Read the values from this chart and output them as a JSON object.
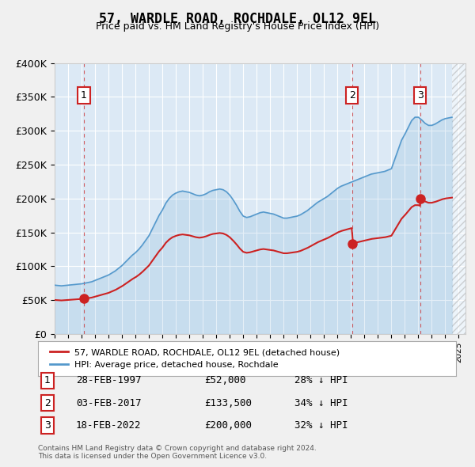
{
  "title": "57, WARDLE ROAD, ROCHDALE, OL12 9EL",
  "subtitle": "Price paid vs. HM Land Registry's House Price Index (HPI)",
  "xlabel": "",
  "ylabel": "",
  "ylim": [
    0,
    400000
  ],
  "yticks": [
    0,
    50000,
    100000,
    150000,
    200000,
    250000,
    300000,
    350000,
    400000
  ],
  "ytick_labels": [
    "£0",
    "£50K",
    "£100K",
    "£150K",
    "£200K",
    "£250K",
    "£300K",
    "£350K",
    "£400K"
  ],
  "xlim_start": 1995.0,
  "xlim_end": 2025.5,
  "background_color": "#dce9f5",
  "plot_bg_color": "#dce9f5",
  "grid_color": "#ffffff",
  "hpi_color": "#5599cc",
  "price_color": "#cc2222",
  "sale_dates_year": [
    1997.167,
    2017.083,
    2022.125
  ],
  "sale_prices": [
    52000,
    133500,
    200000
  ],
  "sale_labels": [
    "1",
    "2",
    "3"
  ],
  "legend_label_price": "57, WARDLE ROAD, ROCHDALE, OL12 9EL (detached house)",
  "legend_label_hpi": "HPI: Average price, detached house, Rochdale",
  "table_data": [
    [
      "1",
      "28-FEB-1997",
      "£52,000",
      "28% ↓ HPI"
    ],
    [
      "2",
      "03-FEB-2017",
      "£133,500",
      "34% ↓ HPI"
    ],
    [
      "3",
      "18-FEB-2022",
      "£200,000",
      "32% ↓ HPI"
    ]
  ],
  "footnote": "Contains HM Land Registry data © Crown copyright and database right 2024.\nThis data is licensed under the Open Government Licence v3.0.",
  "hpi_data_x": [
    1995.0,
    1995.25,
    1995.5,
    1995.75,
    1996.0,
    1996.25,
    1996.5,
    1996.75,
    1997.0,
    1997.25,
    1997.5,
    1997.75,
    1998.0,
    1998.25,
    1998.5,
    1998.75,
    1999.0,
    1999.25,
    1999.5,
    1999.75,
    2000.0,
    2000.25,
    2000.5,
    2000.75,
    2001.0,
    2001.25,
    2001.5,
    2001.75,
    2002.0,
    2002.25,
    2002.5,
    2002.75,
    2003.0,
    2003.25,
    2003.5,
    2003.75,
    2004.0,
    2004.25,
    2004.5,
    2004.75,
    2005.0,
    2005.25,
    2005.5,
    2005.75,
    2006.0,
    2006.25,
    2006.5,
    2006.75,
    2007.0,
    2007.25,
    2007.5,
    2007.75,
    2008.0,
    2008.25,
    2008.5,
    2008.75,
    2009.0,
    2009.25,
    2009.5,
    2009.75,
    2010.0,
    2010.25,
    2010.5,
    2010.75,
    2011.0,
    2011.25,
    2011.5,
    2011.75,
    2012.0,
    2012.25,
    2012.5,
    2012.75,
    2013.0,
    2013.25,
    2013.5,
    2013.75,
    2014.0,
    2014.25,
    2014.5,
    2014.75,
    2015.0,
    2015.25,
    2015.5,
    2015.75,
    2016.0,
    2016.25,
    2016.5,
    2016.75,
    2017.0,
    2017.25,
    2017.5,
    2017.75,
    2018.0,
    2018.25,
    2018.5,
    2018.75,
    2019.0,
    2019.25,
    2019.5,
    2019.75,
    2020.0,
    2020.25,
    2020.5,
    2020.75,
    2021.0,
    2021.25,
    2021.5,
    2021.75,
    2022.0,
    2022.25,
    2022.5,
    2022.75,
    2023.0,
    2023.25,
    2023.5,
    2023.75,
    2024.0,
    2024.25,
    2024.5
  ],
  "hpi_data_y": [
    72000,
    71500,
    71000,
    71500,
    72000,
    72500,
    73000,
    73500,
    74000,
    75000,
    76000,
    77000,
    79000,
    81000,
    83000,
    85000,
    87000,
    90000,
    93000,
    97000,
    101000,
    106000,
    111000,
    116000,
    120000,
    125000,
    131000,
    138000,
    145000,
    155000,
    165000,
    175000,
    183000,
    193000,
    200000,
    205000,
    208000,
    210000,
    211000,
    210000,
    209000,
    207000,
    205000,
    204000,
    205000,
    207000,
    210000,
    212000,
    213000,
    214000,
    213000,
    210000,
    205000,
    198000,
    190000,
    181000,
    174000,
    172000,
    173000,
    175000,
    177000,
    179000,
    180000,
    179000,
    178000,
    177000,
    175000,
    173000,
    171000,
    171000,
    172000,
    173000,
    174000,
    176000,
    179000,
    182000,
    186000,
    190000,
    194000,
    197000,
    200000,
    203000,
    207000,
    211000,
    215000,
    218000,
    220000,
    222000,
    224000,
    226000,
    228000,
    230000,
    232000,
    234000,
    236000,
    237000,
    238000,
    239000,
    240000,
    242000,
    244000,
    258000,
    272000,
    286000,
    295000,
    305000,
    315000,
    320000,
    320000,
    316000,
    311000,
    308000,
    308000,
    310000,
    313000,
    316000,
    318000,
    319000,
    320000
  ]
}
